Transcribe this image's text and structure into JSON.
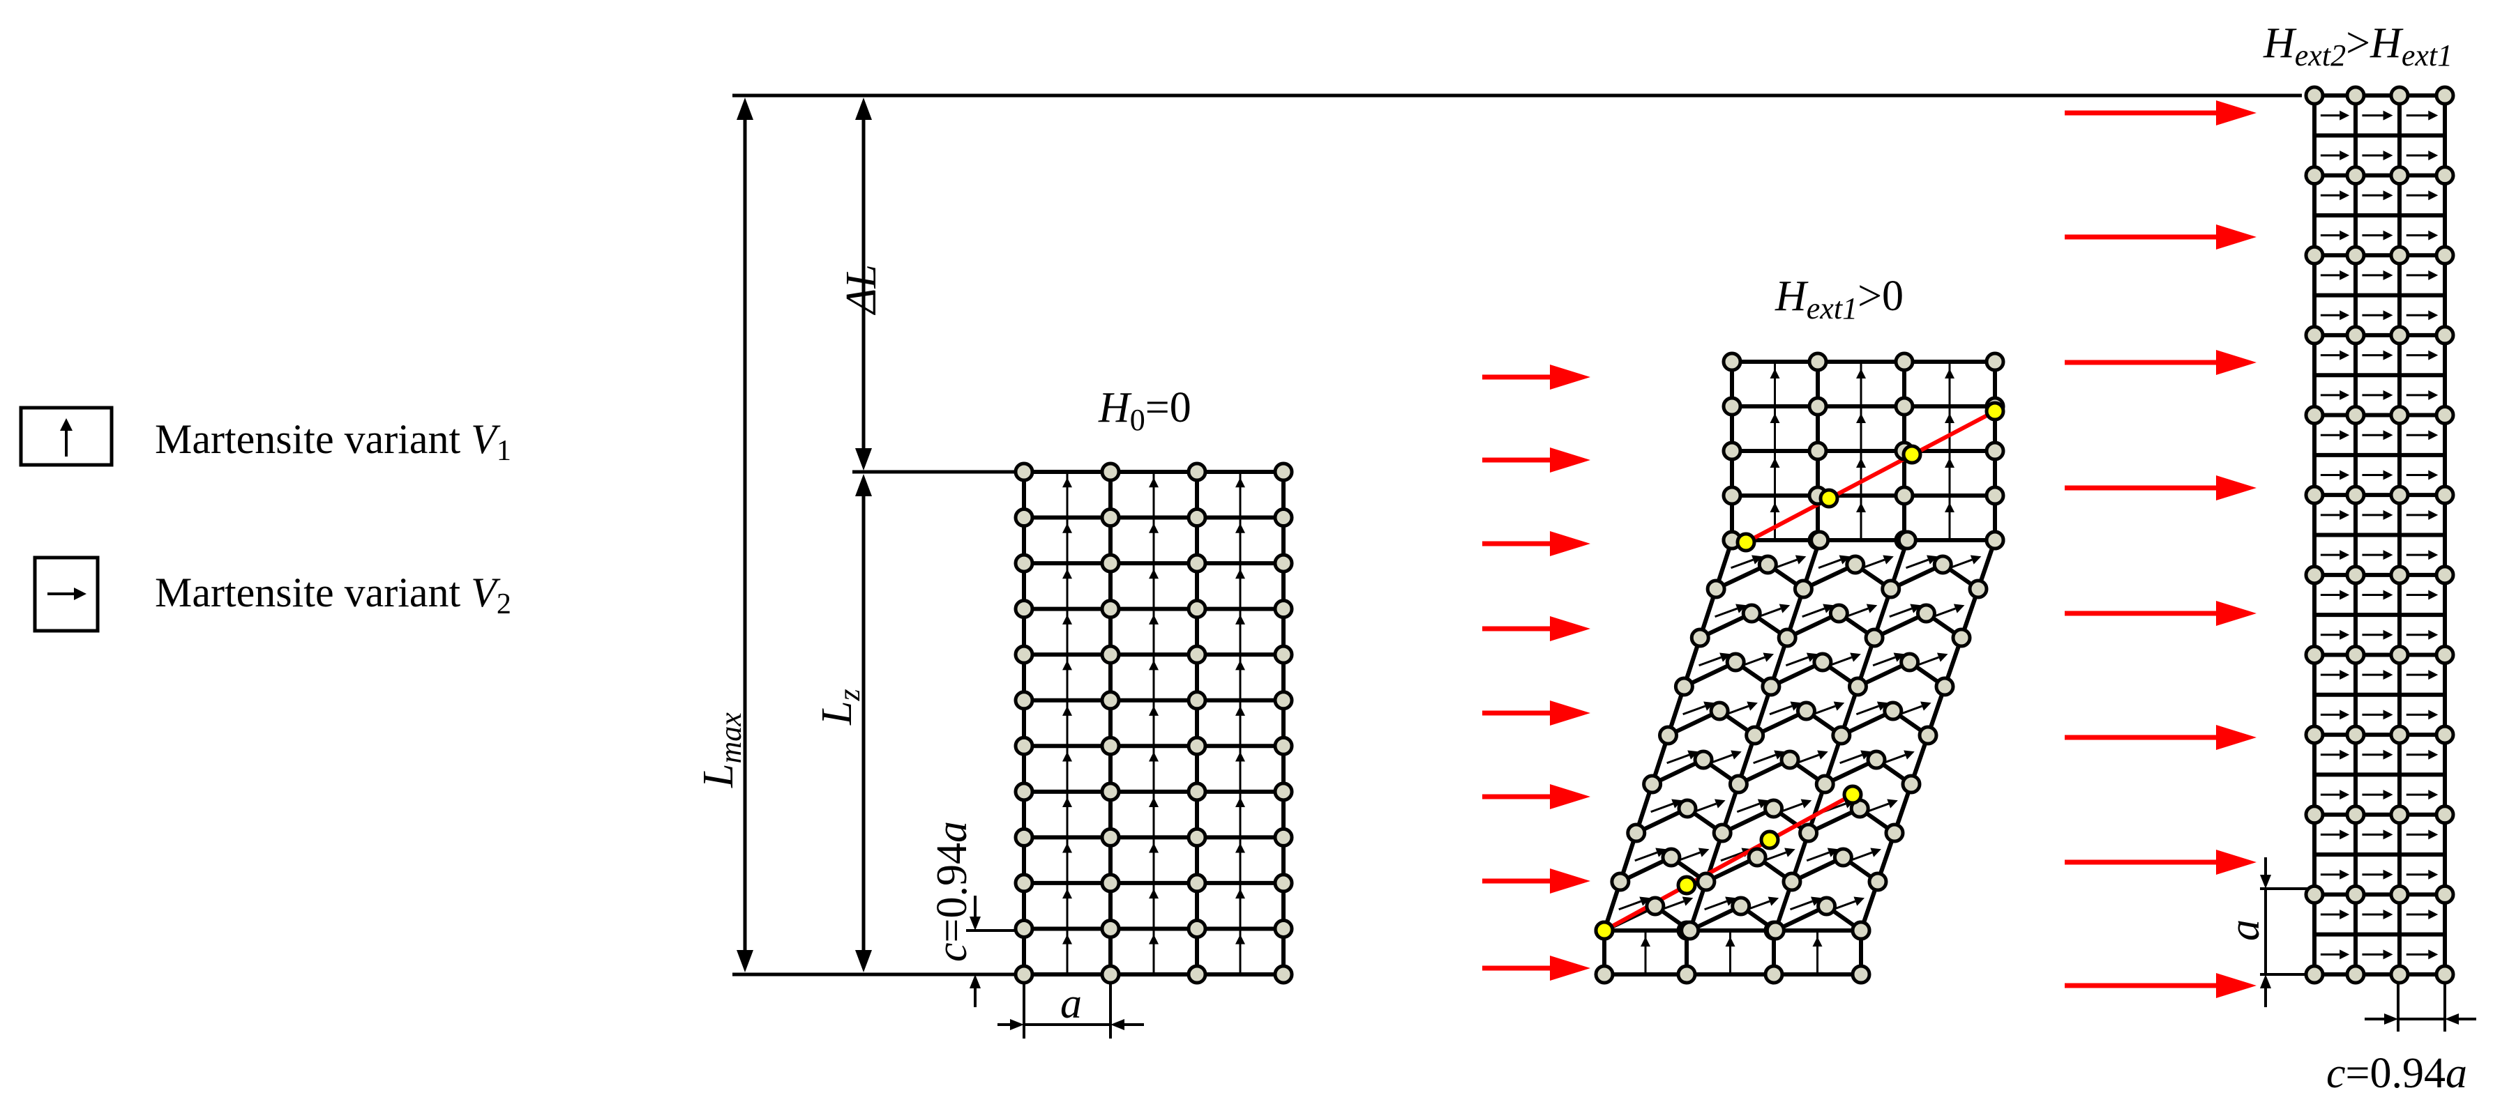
{
  "legend": {
    "items": [
      {
        "symbol": "arrow-up-icon",
        "text": "Martensite variant ",
        "sub_var": "V",
        "sub": "1"
      },
      {
        "symbol": "arrow-right-icon",
        "text": "Martensite variant ",
        "sub_var": "V",
        "sub": "2"
      }
    ]
  },
  "labels": {
    "h0": {
      "main": "H",
      "sub": "0",
      "rest": "=0"
    },
    "hext1": {
      "main": "H",
      "sub": "ext1",
      "rest": ">0"
    },
    "hext2": {
      "main1": "H",
      "sub1": "ext2",
      "op": ">",
      "main2": "H",
      "sub2": "ext1"
    },
    "lmax": {
      "main": "L",
      "sub": "max"
    },
    "delta_l": "ΔL",
    "lz": {
      "main": "L",
      "sub": "z"
    },
    "c_left": {
      "text": "c",
      "rest": "=0.94",
      "var": "a"
    },
    "a_left": "a",
    "a_right": "a",
    "c_right": {
      "text": "c",
      "rest": "=0.94",
      "var": "a"
    }
  },
  "colors": {
    "field_arrow": "#ff0000",
    "node_fill": "#d9d9c7",
    "twin_node_fill": "#ffff00",
    "twin_line": "#ff0000",
    "line": "#000000"
  },
  "lattices": [
    {
      "name": "lattice-h0",
      "rows": 12,
      "cols": 4,
      "variant": "V1"
    },
    {
      "name": "lattice-hext1",
      "rows": 12,
      "cols": 4,
      "variant": "mixed"
    },
    {
      "name": "lattice-hext2",
      "rows": 22,
      "cols": 4,
      "variant": "V2"
    }
  ]
}
